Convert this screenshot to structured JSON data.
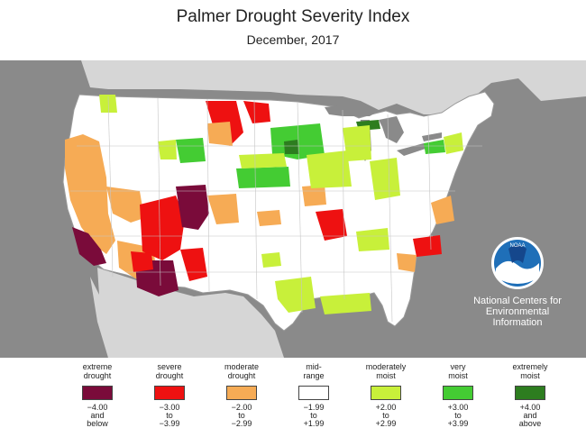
{
  "title": "Palmer Drought Severity Index",
  "subtitle": "December, 2017",
  "organization": {
    "logo_text": "NOAA",
    "lines": [
      "National Centers for",
      "Environmental",
      "Information"
    ]
  },
  "map": {
    "background_color": "#8a8a8a",
    "neighbor_land_color": "#d6d6d6",
    "water_color": "#8a8a8a",
    "state_line_color": "#bdbdbd"
  },
  "legend": [
    {
      "label": [
        "extreme",
        "drought"
      ],
      "range": [
        "−4.00",
        "and",
        "below"
      ],
      "color": "#7a0b3a"
    },
    {
      "label": [
        "severe",
        "drought"
      ],
      "range": [
        "−3.00",
        "to",
        "−3.99"
      ],
      "color": "#ee1111"
    },
    {
      "label": [
        "moderate",
        "drought"
      ],
      "range": [
        "−2.00",
        "to",
        "−2.99"
      ],
      "color": "#f6ab55"
    },
    {
      "label": [
        "mid-",
        "range"
      ],
      "range": [
        "−1.99",
        "to",
        "+1.99"
      ],
      "color": "#ffffff"
    },
    {
      "label": [
        "moderately",
        "moist"
      ],
      "range": [
        "+2.00",
        "to",
        "+2.99"
      ],
      "color": "#c8f03a"
    },
    {
      "label": [
        "very",
        "moist"
      ],
      "range": [
        "+3.00",
        "to",
        "+3.99"
      ],
      "color": "#44cc33"
    },
    {
      "label": [
        "extremely",
        "moist"
      ],
      "range": [
        "+4.00",
        "and",
        "above"
      ],
      "color": "#2d7d1f"
    }
  ]
}
